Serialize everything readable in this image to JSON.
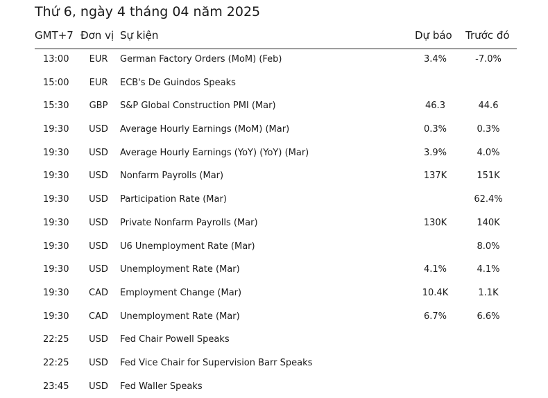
{
  "title": "Thứ 6, ngày 4 tháng 04 năm 2025",
  "headers": {
    "time": "GMT+7",
    "currency": "Đơn vị",
    "event": "Sự kiện",
    "forecast": "Dự báo",
    "previous": "Trước đó"
  },
  "rows": [
    {
      "time": "13:00",
      "currency": "EUR",
      "event": "German Factory Orders (MoM) (Feb)",
      "forecast": "3.4%",
      "previous": "-7.0%"
    },
    {
      "time": "15:00",
      "currency": "EUR",
      "event": "ECB's De Guindos Speaks",
      "forecast": "",
      "previous": ""
    },
    {
      "time": "15:30",
      "currency": "GBP",
      "event": "S&P Global Construction PMI (Mar)",
      "forecast": "46.3",
      "previous": "44.6"
    },
    {
      "time": "19:30",
      "currency": "USD",
      "event": "Average Hourly Earnings (MoM) (Mar)",
      "forecast": "0.3%",
      "previous": "0.3%"
    },
    {
      "time": "19:30",
      "currency": "USD",
      "event": "Average Hourly Earnings (YoY) (YoY) (Mar)",
      "forecast": "3.9%",
      "previous": "4.0%"
    },
    {
      "time": "19:30",
      "currency": "USD",
      "event": "Nonfarm Payrolls (Mar)",
      "forecast": "137K",
      "previous": "151K"
    },
    {
      "time": "19:30",
      "currency": "USD",
      "event": "Participation Rate (Mar)",
      "forecast": "",
      "previous": "62.4%"
    },
    {
      "time": "19:30",
      "currency": "USD",
      "event": "Private Nonfarm Payrolls (Mar)",
      "forecast": "130K",
      "previous": "140K"
    },
    {
      "time": "19:30",
      "currency": "USD",
      "event": "U6 Unemployment Rate (Mar)",
      "forecast": "",
      "previous": "8.0%"
    },
    {
      "time": "19:30",
      "currency": "USD",
      "event": "Unemployment Rate (Mar)",
      "forecast": "4.1%",
      "previous": "4.1%"
    },
    {
      "time": "19:30",
      "currency": "CAD",
      "event": "Employment Change (Mar)",
      "forecast": "10.4K",
      "previous": "1.1K"
    },
    {
      "time": "19:30",
      "currency": "CAD",
      "event": "Unemployment Rate (Mar)",
      "forecast": "6.7%",
      "previous": "6.6%"
    },
    {
      "time": "22:25",
      "currency": "USD",
      "event": "Fed Chair Powell Speaks",
      "forecast": "",
      "previous": ""
    },
    {
      "time": "22:25",
      "currency": "USD",
      "event": "Fed Vice Chair for Supervision Barr Speaks",
      "forecast": "",
      "previous": ""
    },
    {
      "time": "23:45",
      "currency": "USD",
      "event": "Fed Waller Speaks",
      "forecast": "",
      "previous": ""
    }
  ]
}
